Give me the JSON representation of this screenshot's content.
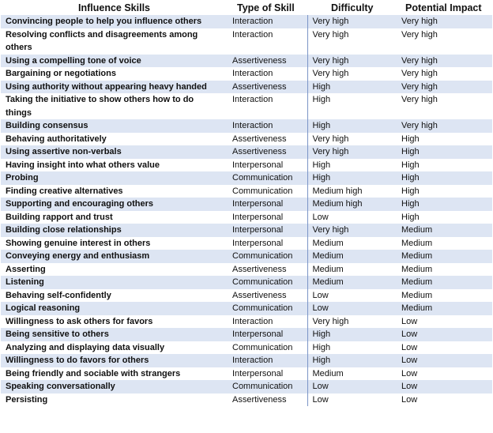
{
  "table": {
    "headers": [
      "Influence Skills",
      "Type of Skill",
      "Difficulty",
      "Potential Impact"
    ],
    "rows": [
      [
        "Convincing people to help you influence others",
        "Interaction",
        "Very high",
        "Very high"
      ],
      [
        "Resolving conflicts and disagreements among others",
        "Interaction",
        "Very high",
        "Very high"
      ],
      [
        "Using a compelling tone of voice",
        "Assertiveness",
        "Very high",
        "Very high"
      ],
      [
        "Bargaining or negotiations",
        "Interaction",
        "Very high",
        "Very high"
      ],
      [
        "Using authority without appearing heavy handed",
        "Assertiveness",
        "High",
        "Very high"
      ],
      [
        "Taking the initiative to show others how to do things",
        "Interaction",
        "High",
        "Very high"
      ],
      [
        "Building consensus",
        "Interaction",
        "High",
        "Very high"
      ],
      [
        "Behaving authoritatively",
        "Assertiveness",
        "Very high",
        "High"
      ],
      [
        "Using assertive non-verbals",
        "Assertiveness",
        "Very high",
        "High"
      ],
      [
        "Having insight into what others value",
        "Interpersonal",
        "High",
        "High"
      ],
      [
        "Probing",
        "Communication",
        "High",
        "High"
      ],
      [
        "Finding creative alternatives",
        "Communication",
        "Medium high",
        "High"
      ],
      [
        "Supporting and encouraging others",
        "Interpersonal",
        "Medium high",
        "High"
      ],
      [
        "Building rapport and trust",
        "Interpersonal",
        "Low",
        "High"
      ],
      [
        "Building close relationships",
        "Interpersonal",
        "Very high",
        "Medium"
      ],
      [
        "Showing genuine interest in others",
        "Interpersonal",
        "Medium",
        "Medium"
      ],
      [
        "Conveying energy and enthusiasm",
        "Communication",
        "Medium",
        "Medium"
      ],
      [
        "Asserting",
        "Assertiveness",
        "Medium",
        "Medium"
      ],
      [
        "Listening",
        "Communication",
        "Medium",
        "Medium"
      ],
      [
        "Behaving self-confidently",
        "Assertiveness",
        "Low",
        "Medium"
      ],
      [
        "Logical reasoning",
        "Communication",
        "Low",
        "Medium"
      ],
      [
        "Willingness to ask others for favors",
        "Interaction",
        "Very high",
        "Low"
      ],
      [
        "Being sensitive to others",
        "Interpersonal",
        "High",
        "Low"
      ],
      [
        "Analyzing and displaying data visually",
        "Communication",
        "High",
        "Low"
      ],
      [
        "Willingness to do favors for others",
        "Interaction",
        "High",
        "Low"
      ],
      [
        "Being friendly and sociable with strangers",
        "Interpersonal",
        "Medium",
        "Low"
      ],
      [
        "Speaking conversationally",
        "Communication",
        "Low",
        "Low"
      ],
      [
        "Persisting",
        "Assertiveness",
        "Low",
        "Low"
      ]
    ]
  }
}
